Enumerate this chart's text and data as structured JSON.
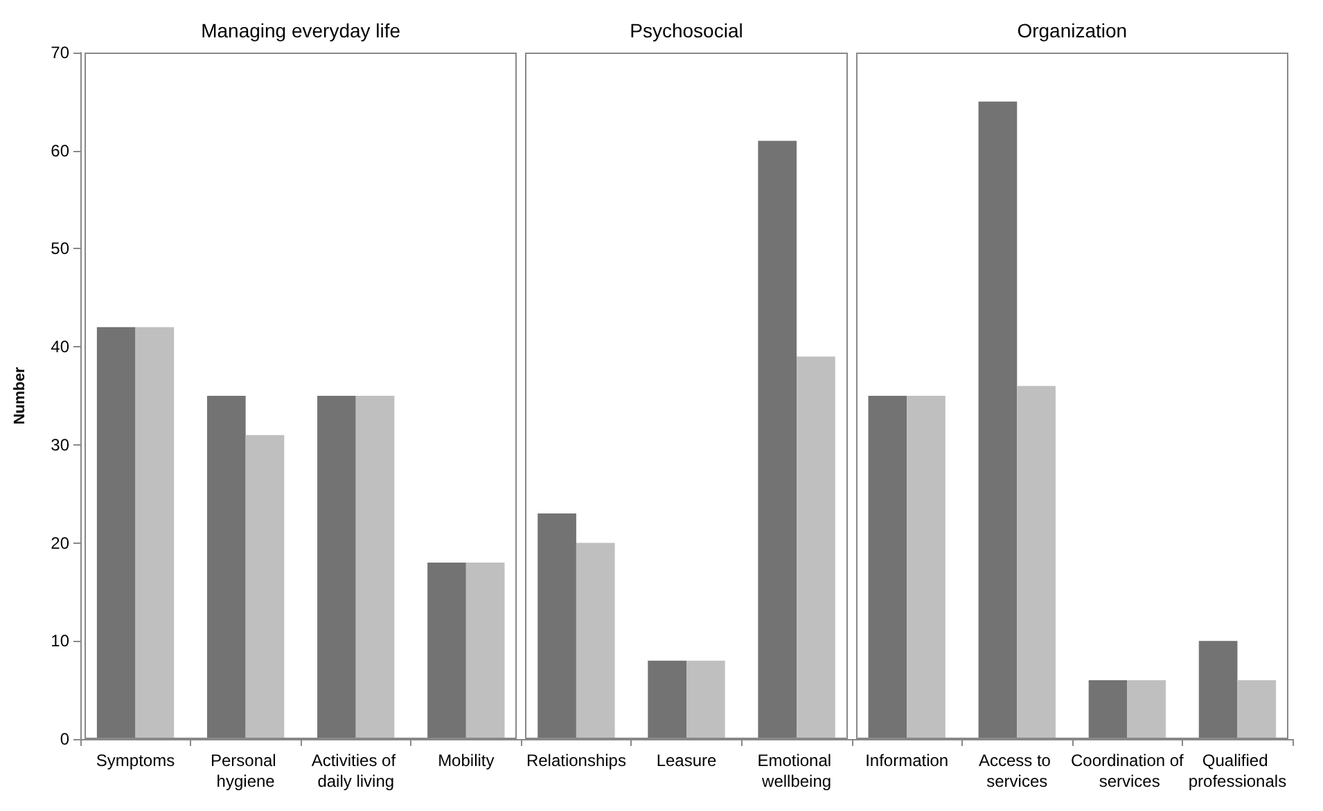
{
  "chart_data": {
    "type": "bar",
    "categories": [
      "Symptoms",
      "Personal hygiene",
      "Activities of daily living",
      "Mobility",
      "Relationships",
      "Leasure",
      "Emotional wellbeing",
      "Information",
      "Access to services",
      "Coordination of services",
      "Qualified professionals"
    ],
    "series": [
      {
        "color": "#737373",
        "values": [
          42,
          35,
          35,
          18,
          23,
          8,
          61,
          35,
          65,
          6,
          10
        ]
      },
      {
        "color": "#bfbfbf",
        "values": [
          42,
          31,
          35,
          18,
          20,
          8,
          39,
          35,
          36,
          6,
          6
        ]
      }
    ],
    "ylabel": "Number",
    "ylim": [
      0,
      70
    ],
    "yticks": [
      0,
      10,
      20,
      30,
      40,
      50,
      60,
      70
    ],
    "grid": false,
    "annotations": [
      "Managing everyday life",
      "Psychosocial",
      "Organization"
    ]
  }
}
